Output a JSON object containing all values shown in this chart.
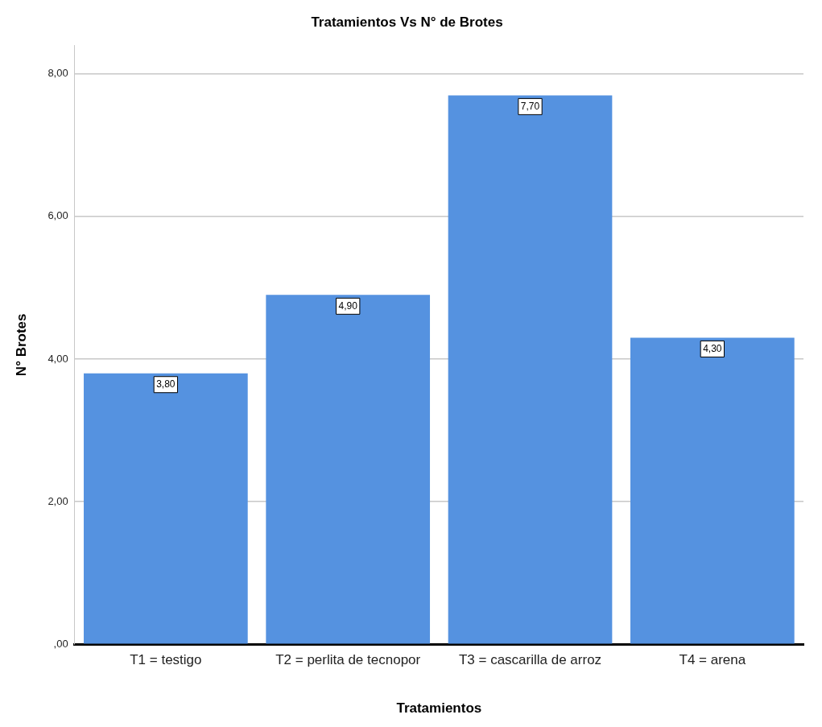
{
  "chart_data": {
    "type": "bar",
    "title": "Tratamientos Vs N° de Brotes",
    "xlabel": "Tratamientos",
    "ylabel": "N° Brotes",
    "categories": [
      "T1 = testigo",
      "T2 = perlita de tecnopor",
      "T3 = cascarilla de arroz",
      "T4 = arena"
    ],
    "values": [
      3.8,
      4.9,
      7.7,
      4.3
    ],
    "value_labels": [
      "3,80",
      "4,90",
      "7,70",
      "4,30"
    ],
    "color": "#5592e0",
    "ylim": [
      0,
      8.4
    ],
    "yticks": [
      {
        "value": 0,
        "label": ",00"
      },
      {
        "value": 2,
        "label": "2,00"
      },
      {
        "value": 4,
        "label": "4,00"
      },
      {
        "value": 6,
        "label": "6,00"
      },
      {
        "value": 8,
        "label": "8,00"
      }
    ],
    "grid": "y",
    "legend": false
  }
}
